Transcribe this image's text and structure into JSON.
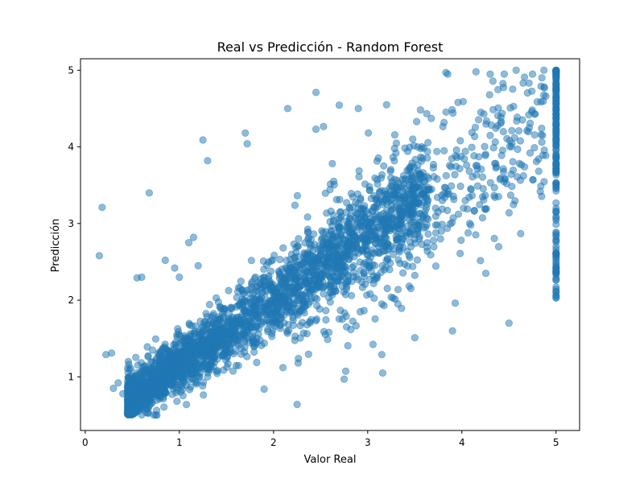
{
  "chart_data": {
    "type": "scatter",
    "title": "Real vs Predicción - Random Forest",
    "xlabel": "Valor Real",
    "ylabel": "Predicción",
    "xlim": [
      -0.05,
      5.25
    ],
    "ylim": [
      0.3,
      5.15
    ],
    "xticks": [
      0,
      1,
      2,
      3,
      4,
      5
    ],
    "yticks": [
      1,
      2,
      3,
      4,
      5
    ],
    "grid": false,
    "legend": "none",
    "marker_color": "#1f77b4",
    "marker_alpha": 0.5,
    "series": [
      {
        "points": [
          [
            0.18,
            3.21
          ],
          [
            0.15,
            2.58
          ],
          [
            0.68,
            3.4
          ],
          [
            0.22,
            1.29
          ],
          [
            0.28,
            1.31
          ],
          [
            0.55,
            2.29
          ],
          [
            0.6,
            2.3
          ],
          [
            0.85,
            2.52
          ],
          [
            1.25,
            4.09
          ],
          [
            1.3,
            3.82
          ],
          [
            1.7,
            4.18
          ],
          [
            1.72,
            4.04
          ],
          [
            2.15,
            4.5
          ],
          [
            2.45,
            4.71
          ],
          [
            2.45,
            4.23
          ],
          [
            2.25,
            0.64
          ],
          [
            2.75,
            0.97
          ],
          [
            3.15,
            1.29
          ],
          [
            3.5,
            1.51
          ],
          [
            3.9,
            1.6
          ],
          [
            4.5,
            1.7
          ],
          [
            2.9,
            4.5
          ],
          [
            3.2,
            4.55
          ],
          [
            3.85,
            4.95
          ],
          [
            4.15,
            4.98
          ],
          [
            4.3,
            4.95
          ],
          [
            4.45,
            4.95
          ],
          [
            4.75,
            4.95
          ],
          [
            4.85,
            4.9
          ],
          [
            0.35,
            0.92
          ],
          [
            0.3,
            0.85
          ],
          [
            0.4,
            0.78
          ],
          [
            0.75,
            0.5
          ],
          [
            1.9,
            0.84
          ],
          [
            2.1,
            1.12
          ],
          [
            1.1,
            2.75
          ],
          [
            1.15,
            2.82
          ],
          [
            0.95,
            2.42
          ],
          [
            1.0,
            2.3
          ],
          [
            1.2,
            2.45
          ]
        ]
      }
    ]
  }
}
